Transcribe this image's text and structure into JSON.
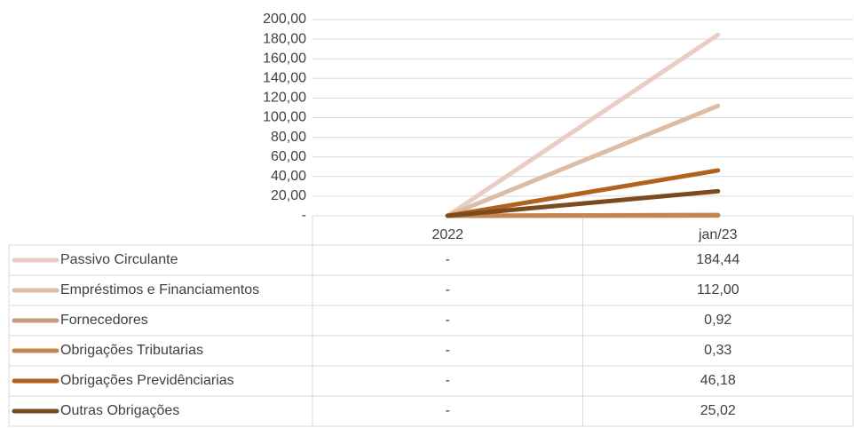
{
  "chart_data": {
    "type": "line",
    "categories": [
      "2022",
      "jan/23"
    ],
    "series": [
      {
        "name": "Passivo Circulante",
        "color": "#e8cdc2",
        "values": [
          0,
          184.44
        ],
        "value_labels": [
          "-",
          "184,44"
        ]
      },
      {
        "name": "Empréstimos e Financiamentos",
        "color": "#dcbca4",
        "values": [
          0,
          112.0
        ],
        "value_labels": [
          "-",
          "112,00"
        ]
      },
      {
        "name": "Fornecedores",
        "color": "#c99a7e",
        "values": [
          0,
          0.92
        ],
        "value_labels": [
          "-",
          "0,92"
        ]
      },
      {
        "name": "Obrigações Tributarias",
        "color": "#c4854f",
        "values": [
          0,
          0.33
        ],
        "value_labels": [
          "-",
          "0,33"
        ]
      },
      {
        "name": "Obrigações Previdênciarias",
        "color": "#b0621f",
        "values": [
          0,
          46.18
        ],
        "value_labels": [
          "-",
          "46,18"
        ]
      },
      {
        "name": "Outras Obrigações",
        "color": "#7b4a1e",
        "values": [
          0,
          25.02
        ],
        "value_labels": [
          "-",
          "25,02"
        ]
      }
    ],
    "ylim": [
      0,
      200
    ],
    "yticks": [
      {
        "value": 0,
        "label": "-"
      },
      {
        "value": 20,
        "label": "20,00"
      },
      {
        "value": 40,
        "label": "40,00"
      },
      {
        "value": 60,
        "label": "60,00"
      },
      {
        "value": 80,
        "label": "80,00"
      },
      {
        "value": 100,
        "label": "100,00"
      },
      {
        "value": 120,
        "label": "120,00"
      },
      {
        "value": 140,
        "label": "140,00"
      },
      {
        "value": 160,
        "label": "160,00"
      },
      {
        "value": 180,
        "label": "180,00"
      },
      {
        "value": 200,
        "label": "200,00"
      }
    ],
    "grid": true
  }
}
